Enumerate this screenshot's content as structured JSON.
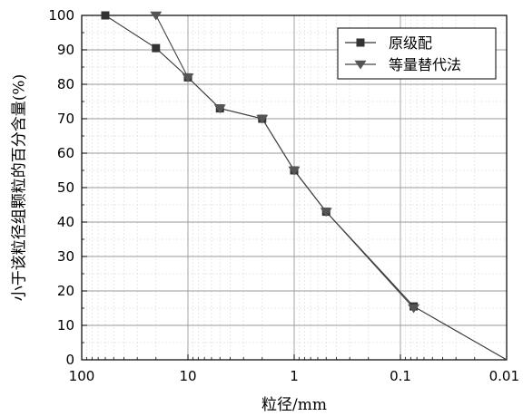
{
  "chart_data": {
    "type": "line",
    "xlabel": "粒径/mm",
    "ylabel": "小于该粒径组颗粒的百分含量(%)",
    "x_scale": "log",
    "x_reversed": true,
    "xlim": [
      100,
      0.01
    ],
    "ylim": [
      0,
      100
    ],
    "x_tick_labels": [
      "100",
      "10",
      "1",
      "0.1",
      "0.01"
    ],
    "y_tick_labels": [
      "0",
      "10",
      "20",
      "30",
      "40",
      "50",
      "60",
      "70",
      "80",
      "90",
      "100"
    ],
    "grid": true,
    "legend_position": "top-right",
    "series": [
      {
        "name": "原级配",
        "marker": "square",
        "color": "#333333",
        "x": [
          60,
          20,
          10,
          5,
          2,
          1,
          0.5,
          0.075,
          0.01
        ],
        "y": [
          100,
          90.5,
          82,
          73,
          70,
          55,
          43,
          15.5,
          0
        ]
      },
      {
        "name": "等量替代法",
        "marker": "triangle-down",
        "color": "#444444",
        "x": [
          20,
          10,
          5,
          2,
          1,
          0.5,
          0.075
        ],
        "y": [
          100,
          82,
          73,
          70,
          55,
          43,
          15
        ]
      }
    ]
  }
}
